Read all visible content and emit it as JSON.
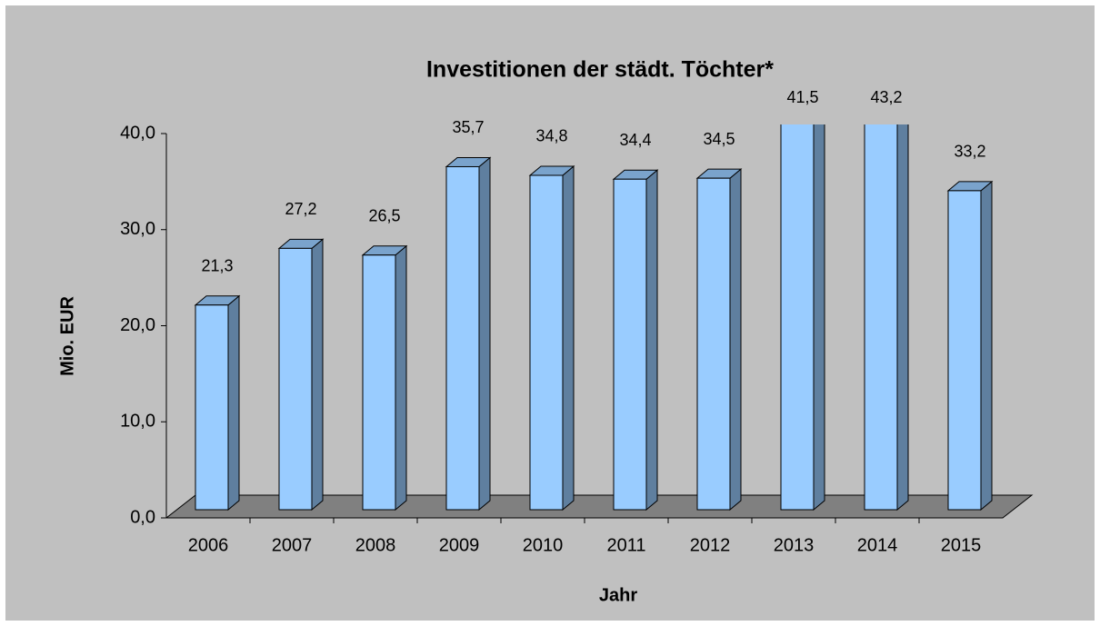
{
  "chart_data": {
    "type": "bar",
    "title": "Investitionen der städt. Töchter*",
    "x_label": "Jahr",
    "y_label": "Mio. EUR",
    "categories": [
      "2006",
      "2007",
      "2008",
      "2009",
      "2010",
      "2011",
      "2012",
      "2013",
      "2014",
      "2015"
    ],
    "values": [
      21.3,
      27.2,
      26.5,
      35.7,
      34.8,
      34.4,
      34.5,
      41.5,
      43.2,
      33.2
    ],
    "value_labels": [
      "21,3",
      "27,2",
      "26,5",
      "35,7",
      "34,8",
      "34,4",
      "34,5",
      "41,5",
      "43,2",
      "33,2"
    ],
    "color": "#99ccff",
    "ylim": [
      0,
      40
    ],
    "yticks": [
      {
        "value": 0,
        "label": "0,0"
      },
      {
        "value": 10,
        "label": "10,0"
      },
      {
        "value": 20,
        "label": "20,0"
      },
      {
        "value": 30,
        "label": "30,0"
      },
      {
        "value": 40,
        "label": "40,0"
      }
    ]
  }
}
